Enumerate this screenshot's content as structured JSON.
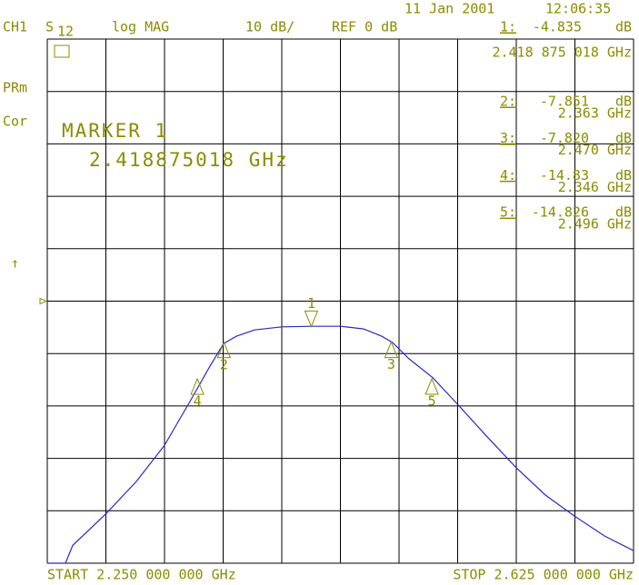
{
  "chart_data": {
    "type": "line",
    "date": "11 Jan 2001",
    "time": "12:06:35",
    "channel": "CH1",
    "param": "S",
    "param_sub": "12",
    "format": "log MAG",
    "scale": "10 dB/",
    "ref": "REF 0 dB",
    "side_labels": [
      "PRm",
      "Cor",
      "↑"
    ],
    "marker_heading": "MARKER 1",
    "marker_freq": "2.418875018 GHz",
    "marker1_freq_full": "2.418 875 018 GHz",
    "unit": "dB",
    "start_label": "START  2.250 000 000 GHz",
    "stop_label": "STOP  2.625 000 000 GHz",
    "xlim": [
      2.25,
      2.625
    ],
    "ylim": [
      -50,
      50
    ],
    "xgrid": [
      2.25,
      2.2875,
      2.325,
      2.3625,
      2.4,
      2.4375,
      2.475,
      2.5125,
      2.55,
      2.5875,
      2.625
    ],
    "ygrid": [
      -50,
      -40,
      -30,
      -20,
      -10,
      0,
      10,
      20,
      30,
      40,
      50
    ],
    "ref_level": 0,
    "x": [
      2.25,
      2.2616,
      2.2663,
      2.2878,
      2.307,
      2.325,
      2.3419,
      2.3535,
      2.3628,
      2.3709,
      2.3826,
      2.4,
      2.4192,
      2.4378,
      2.4523,
      2.464,
      2.4709,
      2.4814,
      2.4965,
      2.5122,
      2.5308,
      2.55,
      2.5686,
      2.5872,
      2.6064,
      2.625
    ],
    "series": [
      {
        "color": "#2828c8",
        "values": [
          -50,
          -50,
          -46.6,
          -40.5,
          -34.4,
          -27.5,
          -18.8,
          -12.7,
          -8.1,
          -6.7,
          -5.5,
          -4.9,
          -4.8,
          -4.8,
          -5.3,
          -6.7,
          -7.9,
          -11,
          -14.6,
          -19.6,
          -25.7,
          -31.8,
          -37,
          -41,
          -44.8,
          -47.6
        ]
      }
    ],
    "markers": [
      {
        "name": "1",
        "readout_name": "1:",
        "x": 2.418875018,
        "value": -4.835,
        "value_label": "-4.835"
      },
      {
        "name": "2",
        "readout_name": "2:",
        "x": 2.363,
        "value": -7.851,
        "value_label": "-7.851",
        "x_label": "2.363 GHz"
      },
      {
        "name": "3",
        "readout_name": "3:",
        "x": 2.47,
        "value": -7.82,
        "value_label": "-7.820",
        "x_label": "2.470 GHz"
      },
      {
        "name": "4",
        "readout_name": "4:",
        "x": 2.346,
        "value": -14.83,
        "value_label": "-14.83",
        "x_label": "2.346 GHz"
      },
      {
        "name": "5",
        "readout_name": "5:",
        "x": 2.496,
        "value": -14.826,
        "value_label": "-14.826",
        "x_label": "2.496 GHz"
      }
    ],
    "text_color": "#8c8c00",
    "grid_color": "#000000"
  }
}
